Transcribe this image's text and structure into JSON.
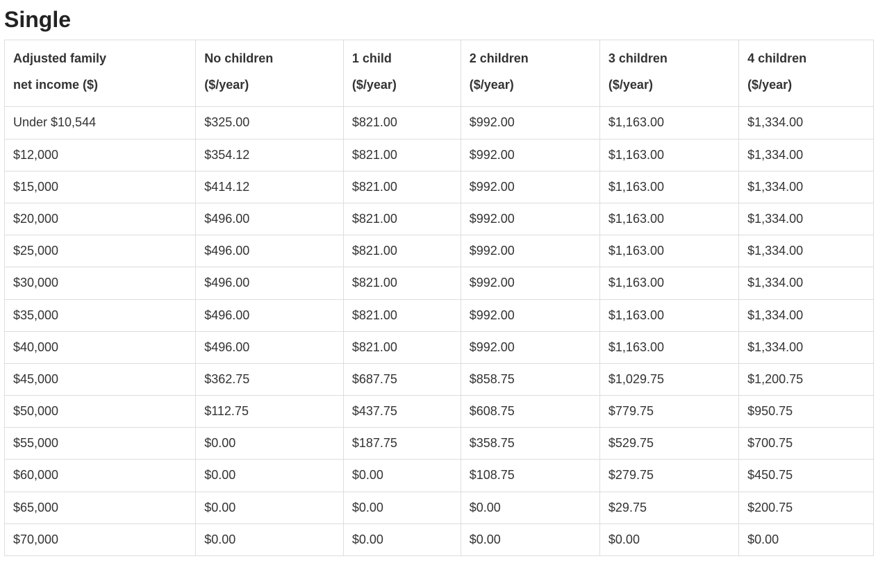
{
  "title": "Single",
  "table": {
    "type": "table",
    "background_color": "#ffffff",
    "border_color": "#dddddd",
    "text_color": "#333333",
    "heading_color": "#222222",
    "header_fontsize_pt": 14,
    "cell_fontsize_pt": 14,
    "font_family": "Segoe UI / Helvetica Neue / Arial",
    "columns": [
      {
        "label_line1": "Adjusted family",
        "label_line2": "net income ($)",
        "width_pct": 22,
        "align": "left"
      },
      {
        "label_line1": "No children",
        "label_line2": "($/year)",
        "width_pct": 17,
        "align": "left"
      },
      {
        "label_line1": "1 child",
        "label_line2": "($/year)",
        "width_pct": 13.5,
        "align": "left"
      },
      {
        "label_line1": "2 children",
        "label_line2": "($/year)",
        "width_pct": 16,
        "align": "left"
      },
      {
        "label_line1": "3 children",
        "label_line2": "($/year)",
        "width_pct": 16,
        "align": "left"
      },
      {
        "label_line1": "4 children",
        "label_line2": "($/year)",
        "width_pct": 15.5,
        "align": "left"
      }
    ],
    "rows": [
      [
        "Under $10,544",
        "$325.00",
        "$821.00",
        "$992.00",
        "$1,163.00",
        "$1,334.00"
      ],
      [
        "$12,000",
        "$354.12",
        "$821.00",
        "$992.00",
        "$1,163.00",
        "$1,334.00"
      ],
      [
        "$15,000",
        "$414.12",
        "$821.00",
        "$992.00",
        "$1,163.00",
        "$1,334.00"
      ],
      [
        "$20,000",
        "$496.00",
        "$821.00",
        "$992.00",
        "$1,163.00",
        "$1,334.00"
      ],
      [
        "$25,000",
        "$496.00",
        "$821.00",
        "$992.00",
        "$1,163.00",
        "$1,334.00"
      ],
      [
        "$30,000",
        "$496.00",
        "$821.00",
        "$992.00",
        "$1,163.00",
        "$1,334.00"
      ],
      [
        "$35,000",
        "$496.00",
        "$821.00",
        "$992.00",
        "$1,163.00",
        "$1,334.00"
      ],
      [
        "$40,000",
        "$496.00",
        "$821.00",
        "$992.00",
        "$1,163.00",
        "$1,334.00"
      ],
      [
        "$45,000",
        "$362.75",
        "$687.75",
        "$858.75",
        "$1,029.75",
        "$1,200.75"
      ],
      [
        "$50,000",
        "$112.75",
        "$437.75",
        "$608.75",
        "$779.75",
        "$950.75"
      ],
      [
        "$55,000",
        "$0.00",
        "$187.75",
        "$358.75",
        "$529.75",
        "$700.75"
      ],
      [
        "$60,000",
        "$0.00",
        "$0.00",
        "$108.75",
        "$279.75",
        "$450.75"
      ],
      [
        "$65,000",
        "$0.00",
        "$0.00",
        "$0.00",
        "$29.75",
        "$200.75"
      ],
      [
        "$70,000",
        "$0.00",
        "$0.00",
        "$0.00",
        "$0.00",
        "$0.00"
      ]
    ]
  }
}
